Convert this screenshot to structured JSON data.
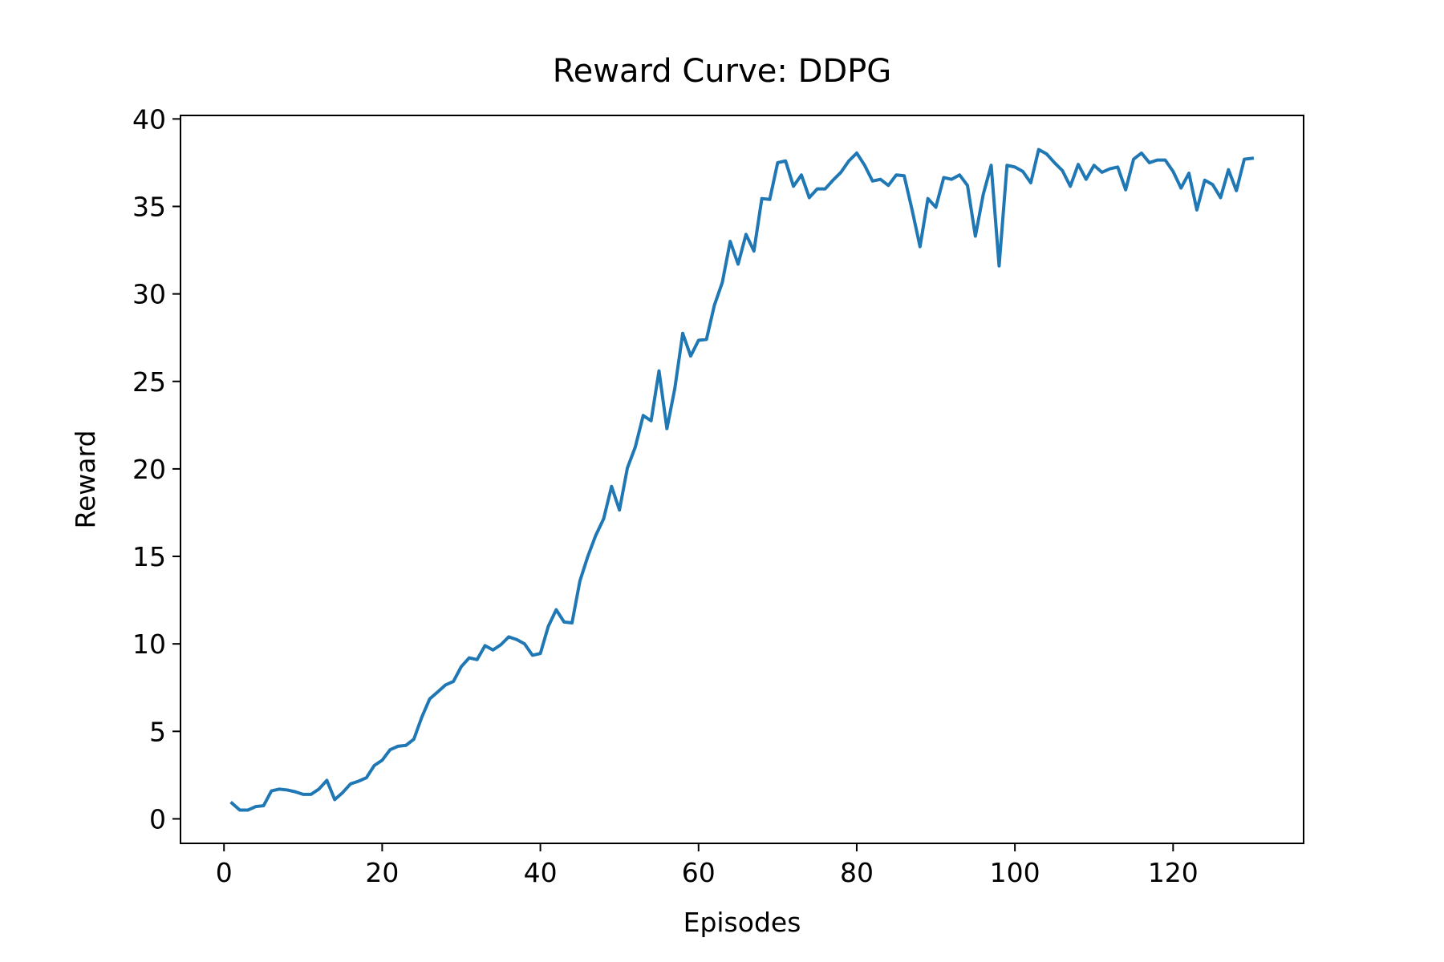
{
  "chart_data": {
    "type": "line",
    "title": "Reward Curve: DDPG",
    "xlabel": "Episodes",
    "ylabel": "Reward",
    "xlim": [
      -5.5,
      136.5
    ],
    "ylim": [
      -1.4,
      40.2
    ],
    "xticks": [
      0,
      20,
      40,
      60,
      80,
      100,
      120
    ],
    "yticks": [
      0,
      5,
      10,
      15,
      20,
      25,
      30,
      35,
      40
    ],
    "grid": false,
    "series": [
      {
        "color": "#1f77b4",
        "x": [
          1,
          2,
          3,
          4,
          5,
          6,
          7,
          8,
          9,
          10,
          11,
          12,
          13,
          14,
          15,
          16,
          17,
          18,
          19,
          20,
          21,
          22,
          23,
          24,
          25,
          26,
          27,
          28,
          29,
          30,
          31,
          32,
          33,
          34,
          35,
          36,
          37,
          38,
          39,
          40,
          41,
          42,
          43,
          44,
          45,
          46,
          47,
          48,
          49,
          50,
          51,
          52,
          53,
          54,
          55,
          56,
          57,
          58,
          59,
          60,
          61,
          62,
          63,
          64,
          65,
          66,
          67,
          68,
          69,
          70,
          71,
          72,
          73,
          74,
          75,
          76,
          77,
          78,
          79,
          80,
          81,
          82,
          83,
          84,
          85,
          86,
          87,
          88,
          89,
          90,
          91,
          92,
          93,
          94,
          95,
          96,
          97,
          98,
          99,
          100,
          101,
          102,
          103,
          104,
          105,
          106,
          107,
          108,
          109,
          110,
          111,
          112,
          113,
          114,
          115,
          116,
          117,
          118,
          119,
          120,
          121,
          122,
          123,
          124,
          125,
          126,
          127,
          128,
          129,
          130
        ],
        "y": [
          0.9,
          0.5,
          0.5,
          0.7,
          0.75,
          1.6,
          1.7,
          1.65,
          1.55,
          1.4,
          1.4,
          1.7,
          2.2,
          1.1,
          1.5,
          2.0,
          2.15,
          2.35,
          3.05,
          3.35,
          3.95,
          4.15,
          4.2,
          4.55,
          5.8,
          6.85,
          7.25,
          7.65,
          7.85,
          8.7,
          9.2,
          9.1,
          9.9,
          9.65,
          9.95,
          10.4,
          10.25,
          10.0,
          9.35,
          9.45,
          11.0,
          11.95,
          11.25,
          11.2,
          13.6,
          15.0,
          16.2,
          17.15,
          19.0,
          17.65,
          20.05,
          21.25,
          23.05,
          22.75,
          25.6,
          22.3,
          24.6,
          27.75,
          26.45,
          27.35,
          27.4,
          29.35,
          30.65,
          33.0,
          31.7,
          33.4,
          32.45,
          35.45,
          35.4,
          37.5,
          37.6,
          36.15,
          36.8,
          35.5,
          36.0,
          36.0,
          36.5,
          36.95,
          37.6,
          38.05,
          37.35,
          36.45,
          36.55,
          36.2,
          36.8,
          36.75,
          34.8,
          32.7,
          35.45,
          34.95,
          36.65,
          36.55,
          36.8,
          36.2,
          33.3,
          35.7,
          37.35,
          31.6,
          37.35,
          37.25,
          37.0,
          36.35,
          38.25,
          38.0,
          37.5,
          37.05,
          36.15,
          37.4,
          36.55,
          37.35,
          36.95,
          37.15,
          37.25,
          35.95,
          37.7,
          38.05,
          37.5,
          37.65,
          37.65,
          37.0,
          36.05,
          36.9,
          34.8,
          36.5,
          36.25,
          35.5,
          37.1,
          35.9,
          37.7,
          37.75
        ]
      }
    ]
  }
}
